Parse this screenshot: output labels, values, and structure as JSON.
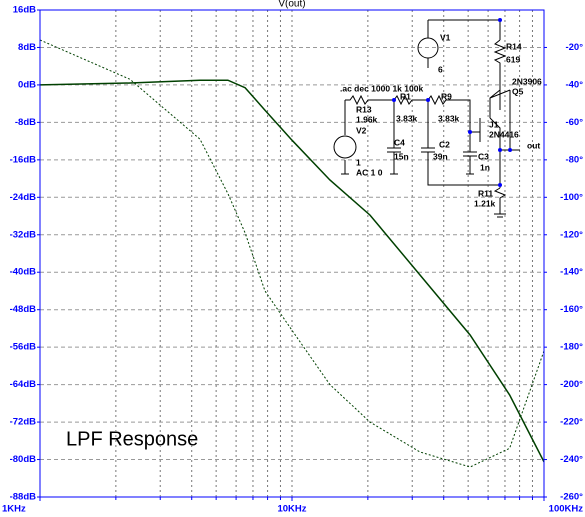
{
  "chart_data": {
    "type": "line",
    "title": "V(out)",
    "annotation": "LPF Response",
    "x": [
      1000,
      2276,
      4316,
      5567,
      6515,
      7817,
      10000,
      14140,
      20400,
      32200,
      50900,
      73000,
      100000
    ],
    "xlog": true,
    "xlim": [
      1000,
      100000
    ],
    "xticks": [
      {
        "value": 1000,
        "label": "1KHz"
      },
      {
        "value": 10000,
        "label": "10KHz"
      },
      {
        "value": 100000,
        "label": "100KHz"
      }
    ],
    "xminorticks": [
      2000,
      3000,
      4000,
      5000,
      6000,
      7000,
      8000,
      9000,
      20000,
      30000,
      40000,
      50000,
      60000,
      70000,
      80000,
      90000
    ],
    "ylim": [
      -88,
      16
    ],
    "yticks": [
      {
        "value": -88,
        "label": "-88dB"
      },
      {
        "value": -80,
        "label": "-80dB"
      },
      {
        "value": -72,
        "label": "-72dB"
      },
      {
        "value": -64,
        "label": "-64dB"
      },
      {
        "value": -56,
        "label": "-56dB"
      },
      {
        "value": -48,
        "label": "-48dB"
      },
      {
        "value": -40,
        "label": "-40dB"
      },
      {
        "value": -32,
        "label": "-32dB"
      },
      {
        "value": -24,
        "label": "-24dB"
      },
      {
        "value": -16,
        "label": "-16dB"
      },
      {
        "value": -8,
        "label": "-8dB"
      },
      {
        "value": 0,
        "label": "0dB"
      },
      {
        "value": 8,
        "label": "8dB"
      },
      {
        "value": 16,
        "label": "16dB"
      }
    ],
    "y2lim": [
      -260,
      0
    ],
    "y2ticks": [
      {
        "value": -260,
        "label": "-260°"
      },
      {
        "value": -240,
        "label": "-240°"
      },
      {
        "value": -220,
        "label": "-220°"
      },
      {
        "value": -200,
        "label": "-200°"
      },
      {
        "value": -180,
        "label": "-180°"
      },
      {
        "value": -160,
        "label": "-160°"
      },
      {
        "value": -140,
        "label": "-140°"
      },
      {
        "value": -120,
        "label": "-120°"
      },
      {
        "value": -100,
        "label": "-100°"
      },
      {
        "value": -80,
        "label": "-80°"
      },
      {
        "value": -60,
        "label": "-60°"
      },
      {
        "value": -40,
        "label": "-40°"
      },
      {
        "value": -20,
        "label": "-20°"
      }
    ],
    "grid": true,
    "series": [
      {
        "color": "#004000",
        "values": [
          0,
          0.4,
          1.0,
          1.0,
          -0.6,
          -5.4,
          -11.8,
          -20.3,
          -27.8,
          -40.6,
          -53.4,
          -66.2,
          -80.5
        ]
      },
      {
        "color": "#004000",
        "axis": "y2",
        "dash": true,
        "values": [
          -16,
          -37,
          -69,
          -98,
          -119,
          -150,
          -171,
          -200,
          -220,
          -236,
          -244,
          -234,
          -182
        ]
      }
    ]
  },
  "schematic": {
    "labels": [
      "V1",
      "6",
      "R14",
      "619",
      "2N3906",
      "Q5",
      ".ac dec 1000 1k 100k",
      "R13",
      "1.96k",
      "R1",
      "3.83k",
      "R9",
      "3.83k",
      "V2",
      "1",
      "AC 1 0",
      "C4",
      "15n",
      "C2",
      "39n",
      "J1",
      "2N4416",
      "C3",
      "1n",
      "out",
      "R11",
      "1.21k"
    ]
  }
}
